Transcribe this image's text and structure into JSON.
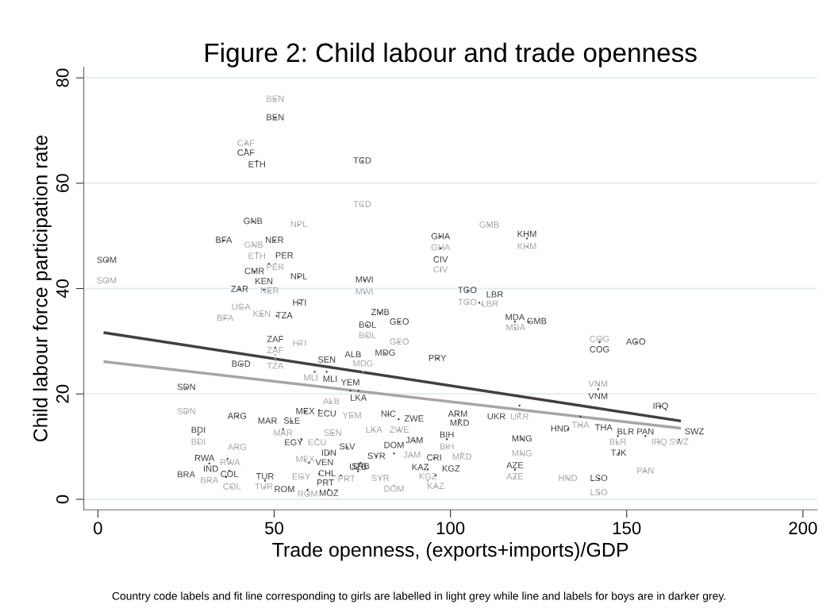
{
  "chart_data": {
    "type": "scatter",
    "title": "Figure 2: Child labour and trade openness",
    "xlabel": "Trade openness, (exports+imports)/GDP",
    "ylabel": "Child labour force participation rate",
    "annotations": [
      "Country code labels and fit line corresponding to girls are labelled in light grey while line and labels for boys are in darker grey."
    ],
    "xlim": [
      -4,
      204
    ],
    "ylim": [
      -2,
      82
    ],
    "xticks": [
      0,
      50,
      100,
      150,
      200
    ],
    "yticks": [
      0,
      20,
      40,
      60,
      80
    ],
    "grid": "y",
    "legend": false,
    "series": [
      {
        "color": "#a6a6a6",
        "marker": "circle",
        "x": [
          50.3,
          42.0,
          75.0,
          44.2,
          45.1,
          57.0,
          2.5,
          50.3,
          48.7,
          40.6,
          36.1,
          46.5,
          57.2,
          50.3,
          50.3,
          60.4,
          75.2,
          66.2,
          72.1,
          78.3,
          85.5,
          66.6,
          62.2,
          52.5,
          39.5,
          28.5,
          25.1,
          58.8,
          57.7,
          37.5,
          31.6,
          38.0,
          47.1,
          59.5,
          70.5,
          80.1,
          84.0,
          89.1,
          99.0,
          103.3,
          95.8,
          93.6,
          111.0,
          121.7,
          97.2,
          97.2,
          104.8,
          109.0,
          118.5,
          85.5,
          76.5,
          75.6,
          142.3,
          141.9,
          119.6,
          136.9,
          120.3,
          118.3,
          133.3,
          142.1,
          155.3,
          147.5,
          159.2,
          164.8
        ],
        "values": [
          75.9,
          67.5,
          55.9,
          48.2,
          46.8,
          52.1,
          41.4,
          44.7,
          39.5,
          36.4,
          34.3,
          35.1,
          29.5,
          26.7,
          27.4,
          21.5,
          24.2,
          18.5,
          15.8,
          13.1,
          13.1,
          12.5,
          11.4,
          12.5,
          9.8,
          10.8,
          16.6,
          7.5,
          4.2,
          6.9,
          3.5,
          2.3,
          2.3,
          0.9,
          3.8,
          3.9,
          2.6,
          8.3,
          9.9,
          8.7,
          2.4,
          3.5,
          52.0,
          47.9,
          47.7,
          43.5,
          37.3,
          37.0,
          32.5,
          29.8,
          31.0,
          39.3,
          30.3,
          21.8,
          16.3,
          14.0,
          8.6,
          4.2,
          3.9,
          1.2,
          5.3,
          10.8,
          10.8,
          10.8
        ],
        "value_labels": [
          "BEN",
          "CAF",
          "TCD",
          "GNB",
          "ETH",
          "NPL",
          "SOM",
          "PER",
          "NER",
          "UGA",
          "BFA",
          "KEN",
          "HTI",
          "ZAF",
          "TZA",
          "MLI",
          "MDG",
          "ALB",
          "YEM",
          "LKA",
          "ZWE",
          "SEN",
          "ECU",
          "MAR",
          "ARG",
          "BDI",
          "SDN",
          "MEX",
          "EGY",
          "RWA",
          "BRA",
          "COL",
          "TUR",
          "ROM",
          "PRT",
          "SYR",
          "DOM",
          "JAM",
          "BIH",
          "MKD",
          "KAZ",
          "KGZ",
          "GMB",
          "KHM",
          "GHA",
          "CIV",
          "TGO",
          "LBR",
          "MDA",
          "GEO",
          "BOL",
          "MWI",
          "COG",
          "VNM",
          "UKR",
          "THA",
          "MNG",
          "AZE",
          "HND",
          "LSO",
          "PAN",
          "BLR",
          "IRQ",
          "SWZ"
        ]
      },
      {
        "color": "#404040",
        "marker": "circle",
        "x": [
          50.3,
          42.0,
          45.1,
          75.0,
          44.0,
          35.7,
          50.1,
          2.5,
          48.5,
          44.4,
          57.0,
          40.2,
          47.1,
          57.2,
          50.7,
          75.6,
          80.1,
          76.5,
          85.5,
          81.5,
          50.3,
          40.6,
          61.5,
          64.9,
          65.8,
          71.6,
          73.9,
          96.3,
          25.1,
          39.5,
          58.8,
          62.8,
          55.0,
          52.5,
          57.7,
          28.5,
          82.4,
          85.3,
          89.8,
          70.7,
          65.5,
          79.0,
          84.0,
          74.5,
          73.8,
          59.9,
          62.8,
          68.9,
          59.5,
          65.5,
          47.4,
          37.3,
          36.4,
          36.8,
          31.6,
          102.1,
          102.6,
          99.0,
          95.4,
          93.6,
          95.8,
          119.6,
          120.3,
          118.3,
          136.9,
          133.3,
          147.5,
          155.3,
          164.8,
          147.7,
          142.1,
          159.6,
          141.9,
          142.3,
          152.6,
          118.3,
          122.3,
          108.2,
          104.8,
          97.2,
          97.2,
          121.7
        ],
        "values": [
          72.4,
          66.4,
          64.2,
          64.2,
          52.7,
          49.1,
          49.1,
          45.3,
          44.7,
          43.2,
          42.2,
          39.8,
          39.8,
          37.2,
          34.8,
          41.6,
          35.4,
          33.0,
          33.6,
          27.7,
          28.8,
          25.6,
          24.2,
          24.2,
          25.2,
          20.6,
          20.6,
          26.7,
          21.2,
          15.7,
          16.6,
          16.9,
          14.8,
          13.3,
          11.4,
          12.3,
          16.1,
          15.2,
          11.1,
          9.9,
          8.7,
          8.1,
          8.7,
          6.9,
          5.3,
          6.9,
          4.8,
          4.5,
          1.8,
          1.8,
          3.5,
          5.4,
          4.2,
          7.7,
          6.8,
          16.1,
          15.1,
          11.4,
          7.8,
          5.7,
          4.5,
          17.8,
          11.4,
          5.6,
          15.7,
          13.3,
          12.0,
          12.0,
          11.3,
          8.7,
          3.9,
          17.6,
          20.9,
          29.8,
          29.8,
          33.7,
          33.7,
          37.3,
          39.6,
          49.8,
          47.6,
          49.5
        ],
        "value_labels": [
          "BEN",
          "CAF",
          "ETH",
          "TCD",
          "GNB",
          "BFA",
          "NER",
          "SOM",
          "PER",
          "CMR",
          "NPL",
          "ZAR",
          "KEN",
          "HTI",
          "TZA",
          "MWI",
          "ZMB",
          "BOL",
          "GEO",
          "MDG",
          "ZAF",
          "BGD",
          "MLI",
          "SEN",
          "ALB",
          "YEM",
          "LKA",
          "PRY",
          "SDN",
          "ARG",
          "MEX",
          "ECU",
          "SLE",
          "MAR",
          "EGY",
          "BDI",
          "NIC",
          "ZWE",
          "JAM",
          "SLV",
          "IDN",
          "SYR",
          "DOM",
          "SRB",
          "UZB",
          "VEN",
          "CHL",
          "PRT",
          "ROM",
          "MOZ",
          "TUR",
          "COL",
          "IND",
          "RWA",
          "BRA",
          "ARM",
          "MKD",
          "BIH",
          "CRI",
          "KGZ",
          "KAZ",
          "UKR",
          "MNG",
          "AZE",
          "THA",
          "HND",
          "BLR",
          "PAN",
          "SWZ",
          "TJK",
          "LSO",
          "IRQ",
          "VNM",
          "COG",
          "AGO",
          "MDA",
          "GMB",
          "LBR",
          "TGO",
          "GHA",
          "CIV",
          "KHM"
        ]
      },
      {
        "type": "line",
        "color": "#a6a6a6",
        "x": [
          2,
          165
        ],
        "values": [
          26.1,
          13.5
        ]
      },
      {
        "type": "line",
        "color": "#404040",
        "x": [
          2,
          165
        ],
        "values": [
          31.6,
          14.9
        ]
      }
    ]
  }
}
